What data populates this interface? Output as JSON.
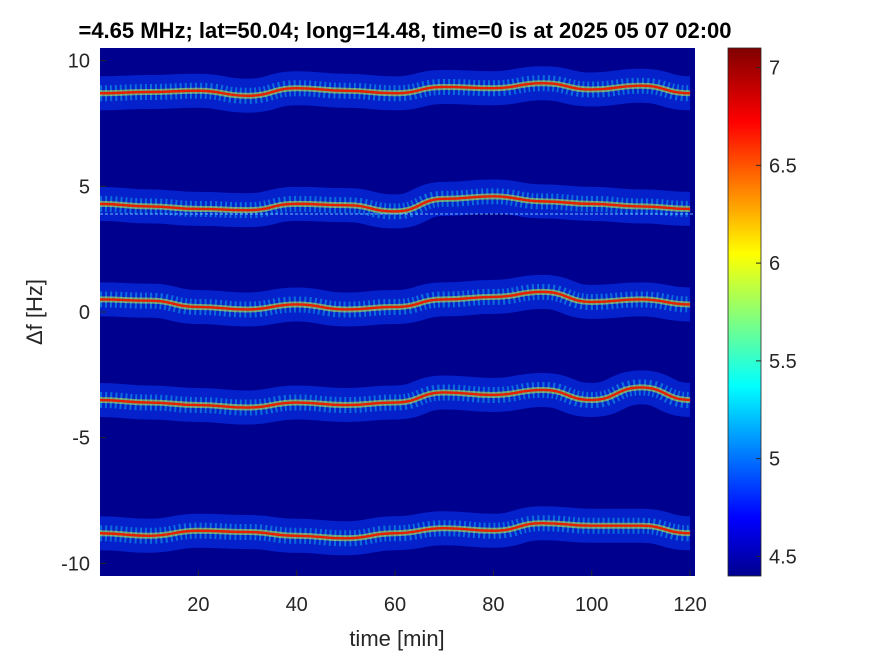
{
  "chart_data": {
    "type": "heatmap",
    "title": "=4.65 MHz;  lat=50.04; long=14.48, time=0 is at 2025 05 07 02:00",
    "xlabel": "time [min]",
    "ylabel": "Δf [Hz]",
    "xlim": [
      0,
      121
    ],
    "ylim": [
      -10.5,
      10.5
    ],
    "xticks": [
      20,
      40,
      60,
      80,
      100,
      120
    ],
    "yticks": [
      10,
      5,
      0,
      -5,
      -10
    ],
    "ytick_labels": [
      "10",
      "5",
      "0",
      "-5",
      "-10"
    ],
    "colormap": "jet",
    "clim": [
      4.4,
      7.1
    ],
    "colorbar_ticks": [
      7,
      6.5,
      6,
      5.5,
      5,
      4.5
    ],
    "background_color": "#00008f",
    "traces": [
      {
        "center_hz": 8.8,
        "profile": [
          [
            0,
            8.7
          ],
          [
            10,
            8.75
          ],
          [
            20,
            8.8
          ],
          [
            30,
            8.6
          ],
          [
            40,
            8.9
          ],
          [
            50,
            8.8
          ],
          [
            60,
            8.7
          ],
          [
            70,
            8.95
          ],
          [
            80,
            8.9
          ],
          [
            90,
            9.1
          ],
          [
            100,
            8.85
          ],
          [
            110,
            9.0
          ],
          [
            120,
            8.7
          ]
        ]
      },
      {
        "center_hz": 4.3,
        "profile": [
          [
            0,
            4.3
          ],
          [
            10,
            4.2
          ],
          [
            20,
            4.1
          ],
          [
            30,
            4.05
          ],
          [
            40,
            4.3
          ],
          [
            50,
            4.25
          ],
          [
            60,
            4.0
          ],
          [
            70,
            4.5
          ],
          [
            80,
            4.6
          ],
          [
            90,
            4.4
          ],
          [
            100,
            4.3
          ],
          [
            110,
            4.2
          ],
          [
            120,
            4.1
          ]
        ]
      },
      {
        "center_hz": 0.5,
        "profile": [
          [
            0,
            0.5
          ],
          [
            10,
            0.45
          ],
          [
            20,
            0.2
          ],
          [
            30,
            0.1
          ],
          [
            40,
            0.3
          ],
          [
            50,
            0.1
          ],
          [
            60,
            0.2
          ],
          [
            70,
            0.5
          ],
          [
            80,
            0.6
          ],
          [
            90,
            0.8
          ],
          [
            100,
            0.4
          ],
          [
            110,
            0.5
          ],
          [
            120,
            0.3
          ]
        ]
      },
      {
        "center_hz": -3.5,
        "profile": [
          [
            0,
            -3.5
          ],
          [
            10,
            -3.6
          ],
          [
            20,
            -3.7
          ],
          [
            30,
            -3.8
          ],
          [
            40,
            -3.6
          ],
          [
            50,
            -3.7
          ],
          [
            60,
            -3.6
          ],
          [
            70,
            -3.2
          ],
          [
            80,
            -3.3
          ],
          [
            90,
            -3.1
          ],
          [
            100,
            -3.5
          ],
          [
            110,
            -3.0
          ],
          [
            120,
            -3.5
          ]
        ]
      },
      {
        "center_hz": -8.8,
        "profile": [
          [
            0,
            -8.8
          ],
          [
            10,
            -8.9
          ],
          [
            20,
            -8.7
          ],
          [
            30,
            -8.75
          ],
          [
            40,
            -8.9
          ],
          [
            50,
            -9.0
          ],
          [
            60,
            -8.8
          ],
          [
            70,
            -8.6
          ],
          [
            80,
            -8.7
          ],
          [
            90,
            -8.4
          ],
          [
            100,
            -8.5
          ],
          [
            110,
            -8.5
          ],
          [
            120,
            -8.8
          ]
        ]
      }
    ],
    "reference_line_hz": 3.9
  }
}
